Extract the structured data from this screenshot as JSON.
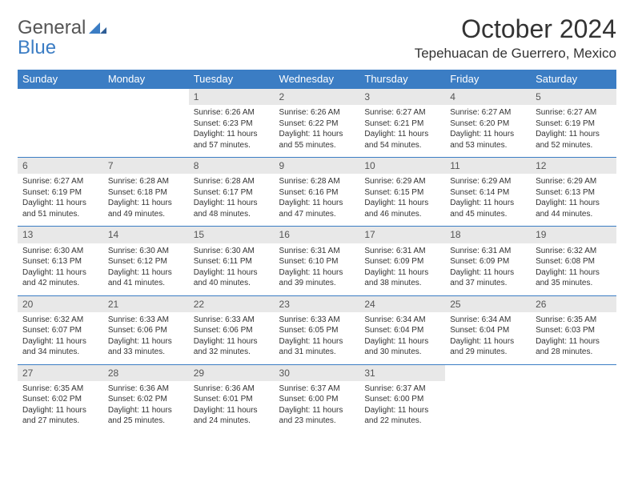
{
  "brand": {
    "part1": "General",
    "part2": "Blue"
  },
  "title": "October 2024",
  "location": "Tepehuacan de Guerrero, Mexico",
  "colors": {
    "header_bg": "#3b7dc4",
    "header_text": "#ffffff",
    "daynum_bg": "#e8e8e8",
    "border": "#3b7dc4",
    "body_text": "#333333"
  },
  "weekdays": [
    "Sunday",
    "Monday",
    "Tuesday",
    "Wednesday",
    "Thursday",
    "Friday",
    "Saturday"
  ],
  "weeks": [
    [
      null,
      null,
      {
        "n": "1",
        "sr": "Sunrise: 6:26 AM",
        "ss": "Sunset: 6:23 PM",
        "d1": "Daylight: 11 hours",
        "d2": "and 57 minutes."
      },
      {
        "n": "2",
        "sr": "Sunrise: 6:26 AM",
        "ss": "Sunset: 6:22 PM",
        "d1": "Daylight: 11 hours",
        "d2": "and 55 minutes."
      },
      {
        "n": "3",
        "sr": "Sunrise: 6:27 AM",
        "ss": "Sunset: 6:21 PM",
        "d1": "Daylight: 11 hours",
        "d2": "and 54 minutes."
      },
      {
        "n": "4",
        "sr": "Sunrise: 6:27 AM",
        "ss": "Sunset: 6:20 PM",
        "d1": "Daylight: 11 hours",
        "d2": "and 53 minutes."
      },
      {
        "n": "5",
        "sr": "Sunrise: 6:27 AM",
        "ss": "Sunset: 6:19 PM",
        "d1": "Daylight: 11 hours",
        "d2": "and 52 minutes."
      }
    ],
    [
      {
        "n": "6",
        "sr": "Sunrise: 6:27 AM",
        "ss": "Sunset: 6:19 PM",
        "d1": "Daylight: 11 hours",
        "d2": "and 51 minutes."
      },
      {
        "n": "7",
        "sr": "Sunrise: 6:28 AM",
        "ss": "Sunset: 6:18 PM",
        "d1": "Daylight: 11 hours",
        "d2": "and 49 minutes."
      },
      {
        "n": "8",
        "sr": "Sunrise: 6:28 AM",
        "ss": "Sunset: 6:17 PM",
        "d1": "Daylight: 11 hours",
        "d2": "and 48 minutes."
      },
      {
        "n": "9",
        "sr": "Sunrise: 6:28 AM",
        "ss": "Sunset: 6:16 PM",
        "d1": "Daylight: 11 hours",
        "d2": "and 47 minutes."
      },
      {
        "n": "10",
        "sr": "Sunrise: 6:29 AM",
        "ss": "Sunset: 6:15 PM",
        "d1": "Daylight: 11 hours",
        "d2": "and 46 minutes."
      },
      {
        "n": "11",
        "sr": "Sunrise: 6:29 AM",
        "ss": "Sunset: 6:14 PM",
        "d1": "Daylight: 11 hours",
        "d2": "and 45 minutes."
      },
      {
        "n": "12",
        "sr": "Sunrise: 6:29 AM",
        "ss": "Sunset: 6:13 PM",
        "d1": "Daylight: 11 hours",
        "d2": "and 44 minutes."
      }
    ],
    [
      {
        "n": "13",
        "sr": "Sunrise: 6:30 AM",
        "ss": "Sunset: 6:13 PM",
        "d1": "Daylight: 11 hours",
        "d2": "and 42 minutes."
      },
      {
        "n": "14",
        "sr": "Sunrise: 6:30 AM",
        "ss": "Sunset: 6:12 PM",
        "d1": "Daylight: 11 hours",
        "d2": "and 41 minutes."
      },
      {
        "n": "15",
        "sr": "Sunrise: 6:30 AM",
        "ss": "Sunset: 6:11 PM",
        "d1": "Daylight: 11 hours",
        "d2": "and 40 minutes."
      },
      {
        "n": "16",
        "sr": "Sunrise: 6:31 AM",
        "ss": "Sunset: 6:10 PM",
        "d1": "Daylight: 11 hours",
        "d2": "and 39 minutes."
      },
      {
        "n": "17",
        "sr": "Sunrise: 6:31 AM",
        "ss": "Sunset: 6:09 PM",
        "d1": "Daylight: 11 hours",
        "d2": "and 38 minutes."
      },
      {
        "n": "18",
        "sr": "Sunrise: 6:31 AM",
        "ss": "Sunset: 6:09 PM",
        "d1": "Daylight: 11 hours",
        "d2": "and 37 minutes."
      },
      {
        "n": "19",
        "sr": "Sunrise: 6:32 AM",
        "ss": "Sunset: 6:08 PM",
        "d1": "Daylight: 11 hours",
        "d2": "and 35 minutes."
      }
    ],
    [
      {
        "n": "20",
        "sr": "Sunrise: 6:32 AM",
        "ss": "Sunset: 6:07 PM",
        "d1": "Daylight: 11 hours",
        "d2": "and 34 minutes."
      },
      {
        "n": "21",
        "sr": "Sunrise: 6:33 AM",
        "ss": "Sunset: 6:06 PM",
        "d1": "Daylight: 11 hours",
        "d2": "and 33 minutes."
      },
      {
        "n": "22",
        "sr": "Sunrise: 6:33 AM",
        "ss": "Sunset: 6:06 PM",
        "d1": "Daylight: 11 hours",
        "d2": "and 32 minutes."
      },
      {
        "n": "23",
        "sr": "Sunrise: 6:33 AM",
        "ss": "Sunset: 6:05 PM",
        "d1": "Daylight: 11 hours",
        "d2": "and 31 minutes."
      },
      {
        "n": "24",
        "sr": "Sunrise: 6:34 AM",
        "ss": "Sunset: 6:04 PM",
        "d1": "Daylight: 11 hours",
        "d2": "and 30 minutes."
      },
      {
        "n": "25",
        "sr": "Sunrise: 6:34 AM",
        "ss": "Sunset: 6:04 PM",
        "d1": "Daylight: 11 hours",
        "d2": "and 29 minutes."
      },
      {
        "n": "26",
        "sr": "Sunrise: 6:35 AM",
        "ss": "Sunset: 6:03 PM",
        "d1": "Daylight: 11 hours",
        "d2": "and 28 minutes."
      }
    ],
    [
      {
        "n": "27",
        "sr": "Sunrise: 6:35 AM",
        "ss": "Sunset: 6:02 PM",
        "d1": "Daylight: 11 hours",
        "d2": "and 27 minutes."
      },
      {
        "n": "28",
        "sr": "Sunrise: 6:36 AM",
        "ss": "Sunset: 6:02 PM",
        "d1": "Daylight: 11 hours",
        "d2": "and 25 minutes."
      },
      {
        "n": "29",
        "sr": "Sunrise: 6:36 AM",
        "ss": "Sunset: 6:01 PM",
        "d1": "Daylight: 11 hours",
        "d2": "and 24 minutes."
      },
      {
        "n": "30",
        "sr": "Sunrise: 6:37 AM",
        "ss": "Sunset: 6:00 PM",
        "d1": "Daylight: 11 hours",
        "d2": "and 23 minutes."
      },
      {
        "n": "31",
        "sr": "Sunrise: 6:37 AM",
        "ss": "Sunset: 6:00 PM",
        "d1": "Daylight: 11 hours",
        "d2": "and 22 minutes."
      },
      null,
      null
    ]
  ]
}
